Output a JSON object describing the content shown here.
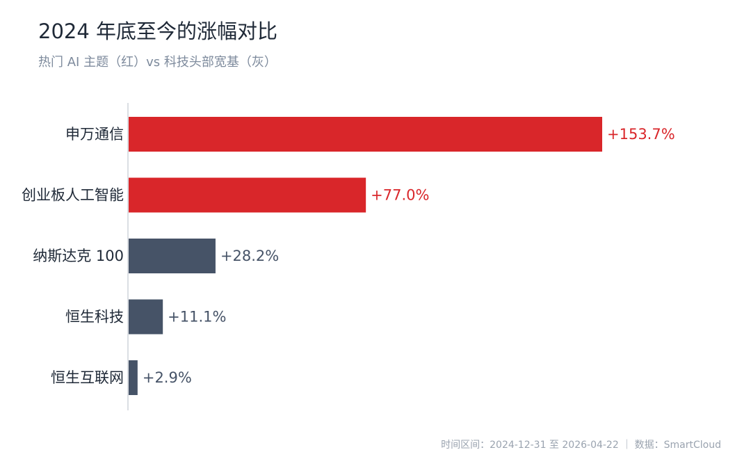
{
  "title": "2024 年底至今的涨幅对比",
  "subtitle": "热门 AI 主题（红）vs 科技头部宽基（灰）",
  "footer": "时间区间：2024-12-31 至 2026-04-22 ｜ 数据：SmartCloud",
  "colors": {
    "hot": "#d9262a",
    "base": "#465367",
    "axis": "#cfd4da",
    "label": "#1f2937"
  },
  "chart_data": {
    "type": "bar",
    "orientation": "horizontal",
    "categories": [
      "申万通信",
      "创业板人工智能",
      "纳斯达克 100",
      "恒生科技",
      "恒生互联网"
    ],
    "values": [
      153.7,
      77.0,
      28.2,
      11.1,
      2.9
    ],
    "value_labels": [
      "+153.7%",
      "+77.0%",
      "+28.2%",
      "+11.1%",
      "+2.9%"
    ],
    "groups": [
      "hot",
      "hot",
      "base",
      "base",
      "base"
    ],
    "xlim": [
      0,
      153.7
    ],
    "grid": false
  }
}
